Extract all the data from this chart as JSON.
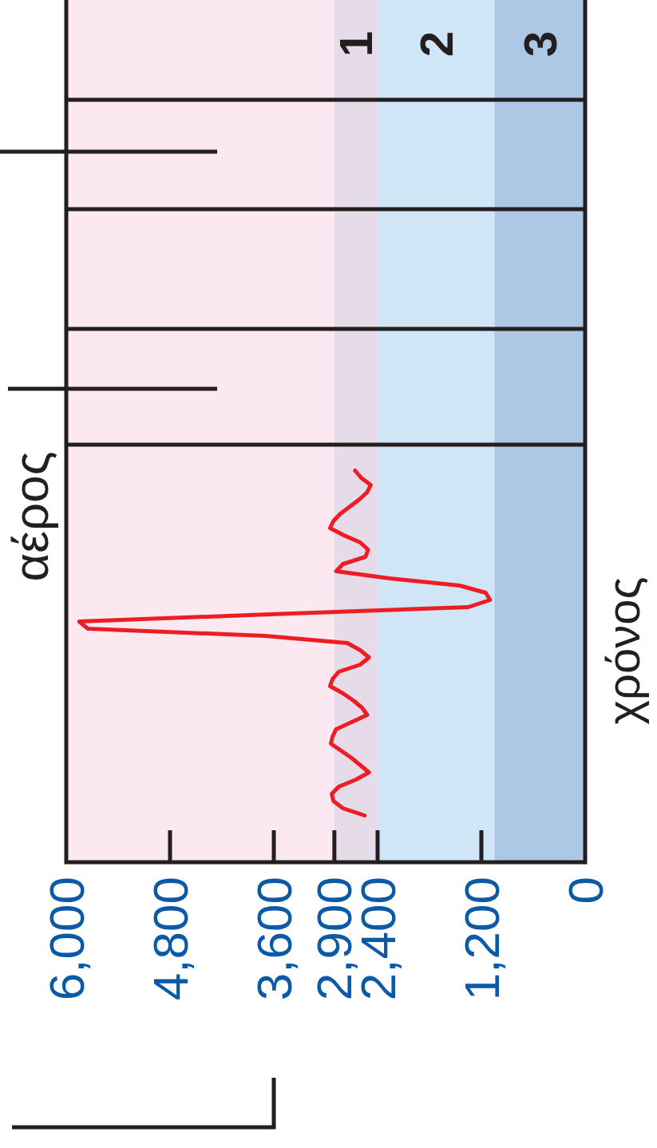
{
  "chart_data": {
    "type": "line",
    "orientation": "horizontal",
    "title": "αέρος",
    "ylabel": "χρόνος",
    "xlim": [
      6000,
      0
    ],
    "xticks": [
      {
        "value": 0,
        "label": "0"
      },
      {
        "value": 1200,
        "label": "1,200"
      },
      {
        "value": 2400,
        "label": "2,400"
      },
      {
        "value": 2900,
        "label": "2,900"
      },
      {
        "value": 3600,
        "label": "3,600"
      },
      {
        "value": 4800,
        "label": "4,800"
      },
      {
        "value": 6000,
        "label": "6,000"
      }
    ],
    "tick_labels": "x",
    "categories": [
      null,
      null,
      null,
      null,
      null,
      null,
      null,
      null,
      null,
      null,
      null,
      null,
      null,
      null,
      null,
      null,
      null,
      null,
      null,
      null,
      null,
      null,
      null,
      null,
      null,
      null,
      null,
      null,
      null,
      null,
      null,
      null,
      null,
      null,
      null,
      null,
      null,
      null,
      null,
      null,
      null,
      null,
      null,
      null,
      null,
      null,
      null,
      null,
      null
    ],
    "series": [
      {
        "color": "#ee1c25",
        "values": [
          2660,
          2590,
          2480,
          2520,
          2610,
          2720,
          2830,
          2910,
          2950,
          2790,
          2600,
          2510,
          2540,
          2800,
          2880,
          2260,
          1450,
          1150,
          1100,
          1350,
          3650,
          5850,
          5750,
          3700,
          2750,
          2600,
          2500,
          2600,
          2850,
          2920,
          2950,
          2800,
          2680,
          2580,
          2520,
          2700,
          2880,
          2920,
          2940,
          2820,
          2700,
          2600,
          2500,
          2650,
          2850,
          2930,
          2910,
          2800,
          2550
        ]
      }
    ],
    "bands": [
      {
        "axis": "x",
        "from": 0,
        "to": 1050,
        "label": "3",
        "color": "#adc8e4"
      },
      {
        "axis": "x",
        "from": 1050,
        "to": 2400,
        "label": "2",
        "color": "#d0e5f5"
      },
      {
        "axis": "x",
        "from": 2400,
        "to": 2900,
        "label": "1",
        "color": "#e6dbe9"
      },
      {
        "axis": "x",
        "from": 2900,
        "to": 6000,
        "color": "#fbe8f1"
      }
    ],
    "line_style": "solid",
    "marker": "none",
    "grid": false,
    "legend": false
  }
}
